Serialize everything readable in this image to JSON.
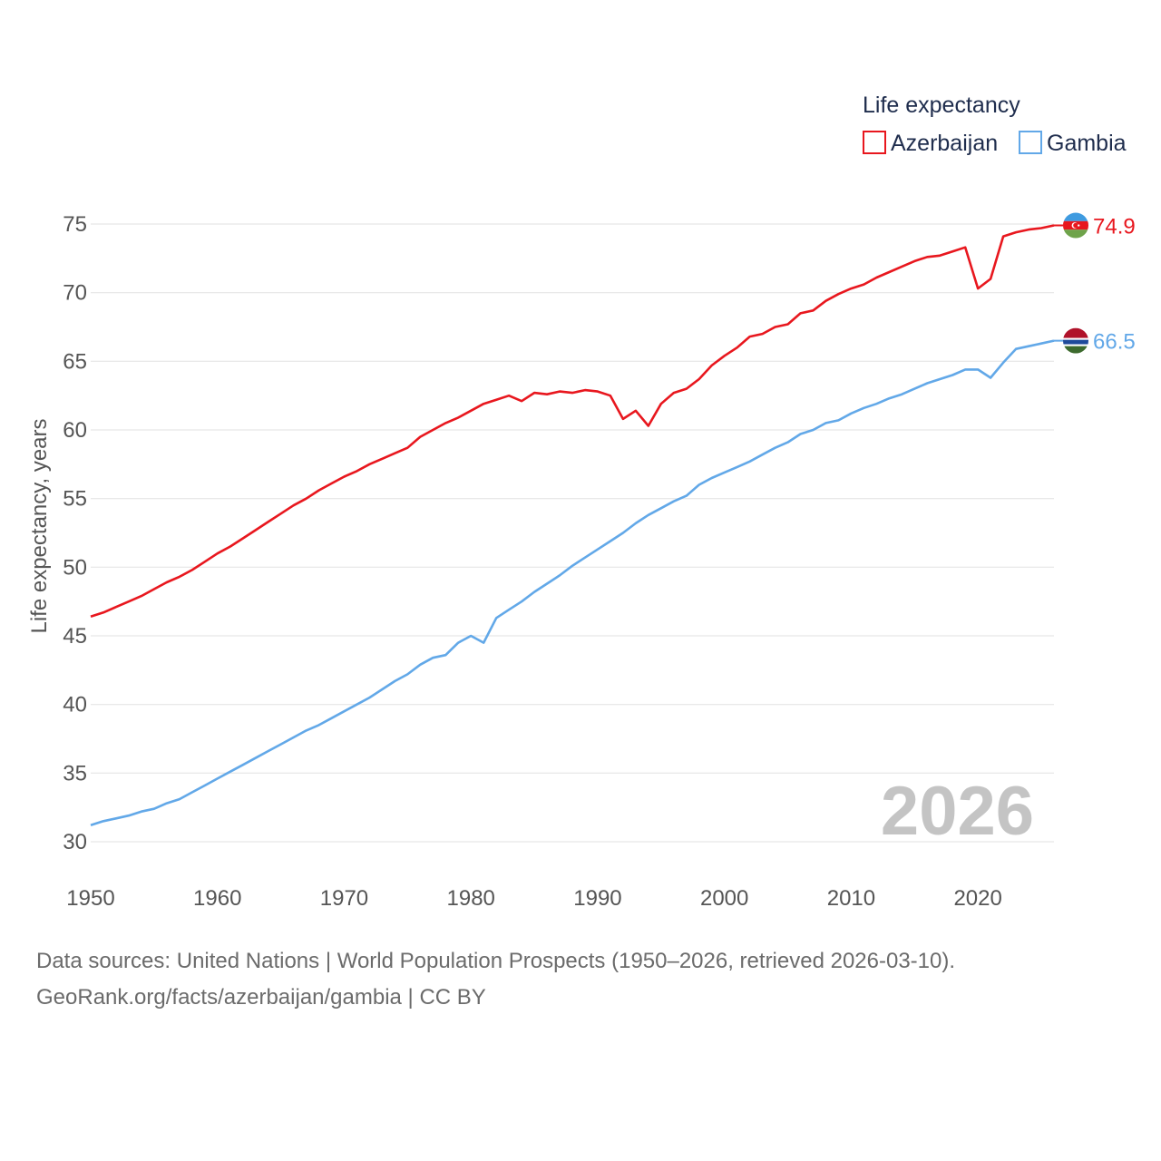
{
  "legend": {
    "title": "Life expectancy",
    "items": [
      {
        "label": "Azerbaijan",
        "color": "#e8171e"
      },
      {
        "label": "Gambia",
        "color": "#62a8e8"
      }
    ]
  },
  "year_watermark": "2026",
  "source": {
    "line1": "Data sources: United Nations | World Population Prospects (1950–2026, retrieved 2026-03-10).",
    "line2": "GeoRank.org/facts/azerbaijan/gambia | CC BY"
  },
  "chart_data": {
    "type": "line",
    "title": "Life expectancy",
    "xlabel": "",
    "ylabel": "Life expectancy, years",
    "xlim": [
      1950,
      2026
    ],
    "ylim": [
      30,
      75
    ],
    "x_ticks": [
      1950,
      1960,
      1970,
      1980,
      1990,
      2000,
      2010,
      2020
    ],
    "y_ticks": [
      30,
      35,
      40,
      45,
      50,
      55,
      60,
      65,
      70,
      75
    ],
    "grid": true,
    "legend_position": "top-right",
    "series": [
      {
        "name": "Azerbaijan",
        "color": "#e8171e",
        "end_label": "74.9",
        "flag": "azerbaijan-flag",
        "x": [
          1950,
          1951,
          1952,
          1953,
          1954,
          1955,
          1956,
          1957,
          1958,
          1959,
          1960,
          1961,
          1962,
          1963,
          1964,
          1965,
          1966,
          1967,
          1968,
          1969,
          1970,
          1971,
          1972,
          1973,
          1974,
          1975,
          1976,
          1977,
          1978,
          1979,
          1980,
          1981,
          1982,
          1983,
          1984,
          1985,
          1986,
          1987,
          1988,
          1989,
          1990,
          1991,
          1992,
          1993,
          1994,
          1995,
          1996,
          1997,
          1998,
          1999,
          2000,
          2001,
          2002,
          2003,
          2004,
          2005,
          2006,
          2007,
          2008,
          2009,
          2010,
          2011,
          2012,
          2013,
          2014,
          2015,
          2016,
          2017,
          2018,
          2019,
          2020,
          2021,
          2022,
          2023,
          2024,
          2025,
          2026
        ],
        "values": [
          46.4,
          46.7,
          47.1,
          47.5,
          47.9,
          48.4,
          48.9,
          49.3,
          49.8,
          50.4,
          51.0,
          51.5,
          52.1,
          52.7,
          53.3,
          53.9,
          54.5,
          55.0,
          55.6,
          56.1,
          56.6,
          57.0,
          57.5,
          57.9,
          58.3,
          58.7,
          59.5,
          60.0,
          60.5,
          60.9,
          61.4,
          61.9,
          62.2,
          62.5,
          62.1,
          62.7,
          62.6,
          62.8,
          62.7,
          62.9,
          62.8,
          62.5,
          60.8,
          61.4,
          60.3,
          61.9,
          62.7,
          63.0,
          63.7,
          64.7,
          65.4,
          66.0,
          66.8,
          67.0,
          67.5,
          67.7,
          68.5,
          68.7,
          69.4,
          69.9,
          70.3,
          70.6,
          71.1,
          71.5,
          71.9,
          72.3,
          72.6,
          72.7,
          73.0,
          73.3,
          70.3,
          71.0,
          74.1,
          74.4,
          74.6,
          74.7,
          74.9
        ]
      },
      {
        "name": "Gambia",
        "color": "#62a8e8",
        "end_label": "66.5",
        "flag": "gambia-flag",
        "x": [
          1950,
          1951,
          1952,
          1953,
          1954,
          1955,
          1956,
          1957,
          1958,
          1959,
          1960,
          1961,
          1962,
          1963,
          1964,
          1965,
          1966,
          1967,
          1968,
          1969,
          1970,
          1971,
          1972,
          1973,
          1974,
          1975,
          1976,
          1977,
          1978,
          1979,
          1980,
          1981,
          1982,
          1983,
          1984,
          1985,
          1986,
          1987,
          1988,
          1989,
          1990,
          1991,
          1992,
          1993,
          1994,
          1995,
          1996,
          1997,
          1998,
          1999,
          2000,
          2001,
          2002,
          2003,
          2004,
          2005,
          2006,
          2007,
          2008,
          2009,
          2010,
          2011,
          2012,
          2013,
          2014,
          2015,
          2016,
          2017,
          2018,
          2019,
          2020,
          2021,
          2022,
          2023,
          2024,
          2025,
          2026
        ],
        "values": [
          31.2,
          31.5,
          31.7,
          31.9,
          32.2,
          32.4,
          32.8,
          33.1,
          33.6,
          34.1,
          34.6,
          35.1,
          35.6,
          36.1,
          36.6,
          37.1,
          37.6,
          38.1,
          38.5,
          39.0,
          39.5,
          40.0,
          40.5,
          41.1,
          41.7,
          42.2,
          42.9,
          43.4,
          43.6,
          44.5,
          45.0,
          44.5,
          46.3,
          46.9,
          47.5,
          48.2,
          48.8,
          49.4,
          50.1,
          50.7,
          51.3,
          51.9,
          52.5,
          53.2,
          53.8,
          54.3,
          54.8,
          55.2,
          56.0,
          56.5,
          56.9,
          57.3,
          57.7,
          58.2,
          58.7,
          59.1,
          59.7,
          60.0,
          60.5,
          60.7,
          61.2,
          61.6,
          61.9,
          62.3,
          62.6,
          63.0,
          63.4,
          63.7,
          64.0,
          64.4,
          64.4,
          63.8,
          64.9,
          65.9,
          66.1,
          66.3,
          66.5
        ]
      }
    ]
  }
}
